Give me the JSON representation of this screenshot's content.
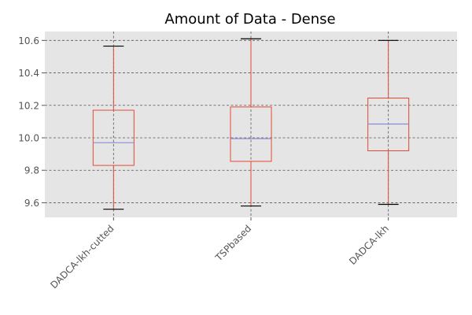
{
  "chart_data": {
    "type": "box",
    "title": "Amount of Data - Dense",
    "xlabel": "",
    "ylabel": "",
    "ylim": [
      9.51,
      10.655
    ],
    "yticks": [
      "9.6",
      "9.8",
      "10.0",
      "10.2",
      "10.4",
      "10.6"
    ],
    "grid": true,
    "categories": [
      "DADCA-lkh-cutted",
      "TSPbased",
      "DADCA-lkh"
    ],
    "boxes": [
      {
        "whisker_low": 9.56,
        "q1": 9.83,
        "median": 9.97,
        "q3": 10.17,
        "whisker_high": 10.565
      },
      {
        "whisker_low": 9.58,
        "q1": 9.855,
        "median": 9.995,
        "q3": 10.19,
        "whisker_high": 10.61
      },
      {
        "whisker_low": 9.59,
        "q1": 9.92,
        "median": 10.085,
        "q3": 10.245,
        "whisker_high": 10.6
      }
    ],
    "colors": {
      "plot_background": "#e5e5e5",
      "grid": "#555555",
      "box": "#e24a33",
      "median": "#8a8ad9",
      "cap": "#000000"
    }
  }
}
